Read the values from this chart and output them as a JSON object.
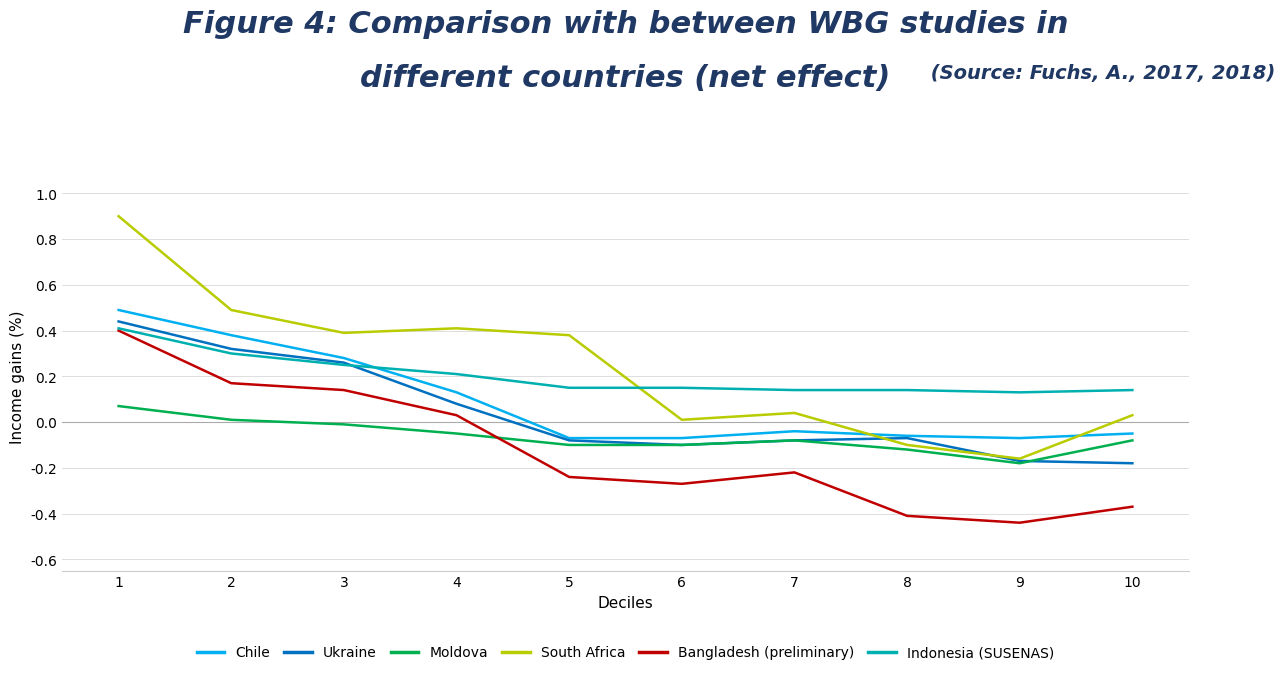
{
  "title_line1": "Figure 4: Comparison with between WBG studies in",
  "title_line2_main": "different countries (net effect)",
  "title_line2_source": " (Source: Fuchs, A., 2017, 2018)",
  "xlabel": "Deciles",
  "ylabel": "Income gains (%)",
  "xlim": [
    0.5,
    10.5
  ],
  "ylim": [
    -0.65,
    1.05
  ],
  "yticks": [
    -0.6,
    -0.4,
    -0.2,
    0.0,
    0.2,
    0.4,
    0.6,
    0.8,
    1.0
  ],
  "xticks": [
    1,
    2,
    3,
    4,
    5,
    6,
    7,
    8,
    9,
    10
  ],
  "deciles": [
    1,
    2,
    3,
    4,
    5,
    6,
    7,
    8,
    9,
    10
  ],
  "series": {
    "Chile": {
      "values": [
        0.49,
        0.38,
        0.28,
        0.13,
        -0.07,
        -0.07,
        -0.04,
        -0.06,
        -0.07,
        -0.05
      ],
      "color": "#00B0F0",
      "linewidth": 1.8
    },
    "Ukraine": {
      "values": [
        0.44,
        0.32,
        0.26,
        0.08,
        -0.08,
        -0.1,
        -0.08,
        -0.07,
        -0.17,
        -0.18
      ],
      "color": "#0070C0",
      "linewidth": 1.8
    },
    "Moldova": {
      "values": [
        0.07,
        0.01,
        -0.01,
        -0.05,
        -0.1,
        -0.1,
        -0.08,
        -0.12,
        -0.18,
        -0.08
      ],
      "color": "#00B050",
      "linewidth": 1.8
    },
    "South Africa": {
      "values": [
        0.9,
        0.49,
        0.39,
        0.41,
        0.38,
        0.01,
        0.04,
        -0.1,
        -0.16,
        0.03
      ],
      "color": "#B8CC00",
      "linewidth": 1.8
    },
    "Bangladesh (preliminary)": {
      "values": [
        0.4,
        0.17,
        0.14,
        0.03,
        -0.24,
        -0.27,
        -0.22,
        -0.41,
        -0.44,
        -0.37
      ],
      "color": "#C00000",
      "linewidth": 1.8
    },
    "Indonesia (SUSENAS)": {
      "values": [
        0.41,
        0.3,
        0.25,
        0.21,
        0.15,
        0.15,
        0.14,
        0.14,
        0.13,
        0.14
      ],
      "color": "#00B0B0",
      "linewidth": 1.8
    }
  },
  "title_color": "#1F3864",
  "title_fontsize": 22,
  "source_fontsize": 14,
  "axis_label_fontsize": 11,
  "tick_fontsize": 10,
  "legend_fontsize": 10,
  "background_color": "#FFFFFF",
  "grid_color": "#D0D0D0",
  "zero_line_color": "#AAAAAA"
}
